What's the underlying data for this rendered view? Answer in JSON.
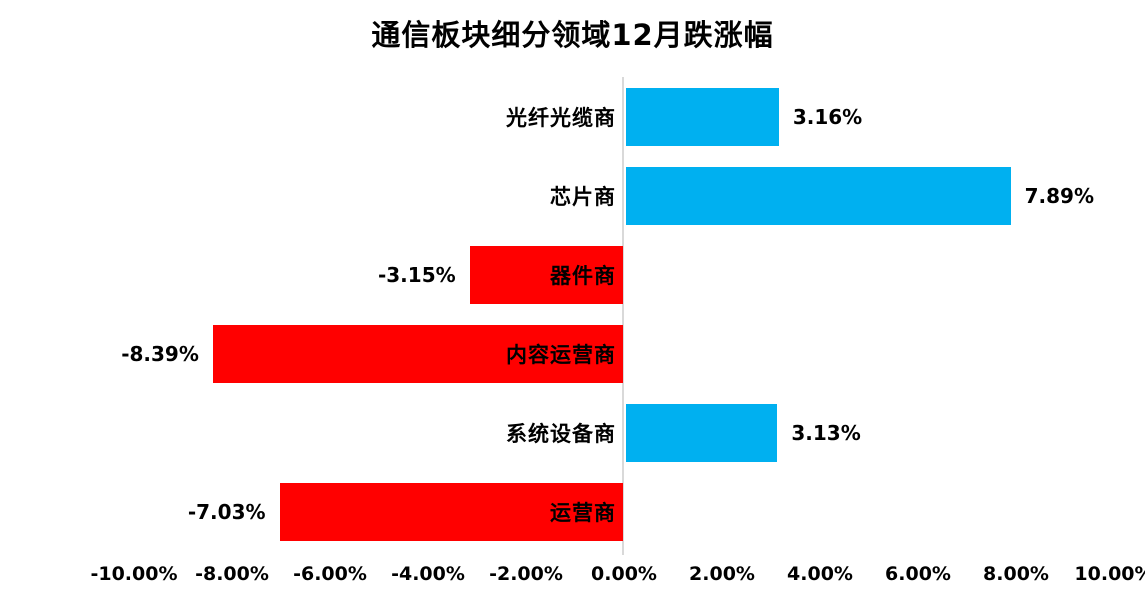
{
  "title": "通信板块细分领域12月跌涨幅",
  "chart_data": {
    "type": "bar",
    "orientation": "horizontal",
    "title": "通信板块细分领域12月跌涨幅",
    "categories": [
      "光纤光缆商",
      "芯片商",
      "器件商",
      "内容运营商",
      "系统设备商",
      "运营商"
    ],
    "values": [
      3.16,
      7.89,
      -3.15,
      -8.39,
      3.13,
      -7.03
    ],
    "value_labels": [
      "3.16%",
      "7.89%",
      "-3.15%",
      "-8.39%",
      "3.13%",
      "-7.03%"
    ],
    "xlabel": "",
    "ylabel": "",
    "xlim": [
      -10,
      10
    ],
    "x_ticks": [
      -10,
      -8,
      -6,
      -4,
      -2,
      0,
      2,
      4,
      6,
      8,
      10
    ],
    "x_tick_labels": [
      "-10.00%",
      "-8.00%",
      "-6.00%",
      "-4.00%",
      "-2.00%",
      "0.00%",
      "2.00%",
      "4.00%",
      "6.00%",
      "8.00%",
      "10.00%"
    ],
    "grid": false,
    "legend": false,
    "colors": {
      "positive_bar": "#00B0F0",
      "negative_bar": "#FF0000",
      "axis_line": "#D9D9D9",
      "text": "#000000",
      "background": "#FFFFFF"
    }
  }
}
